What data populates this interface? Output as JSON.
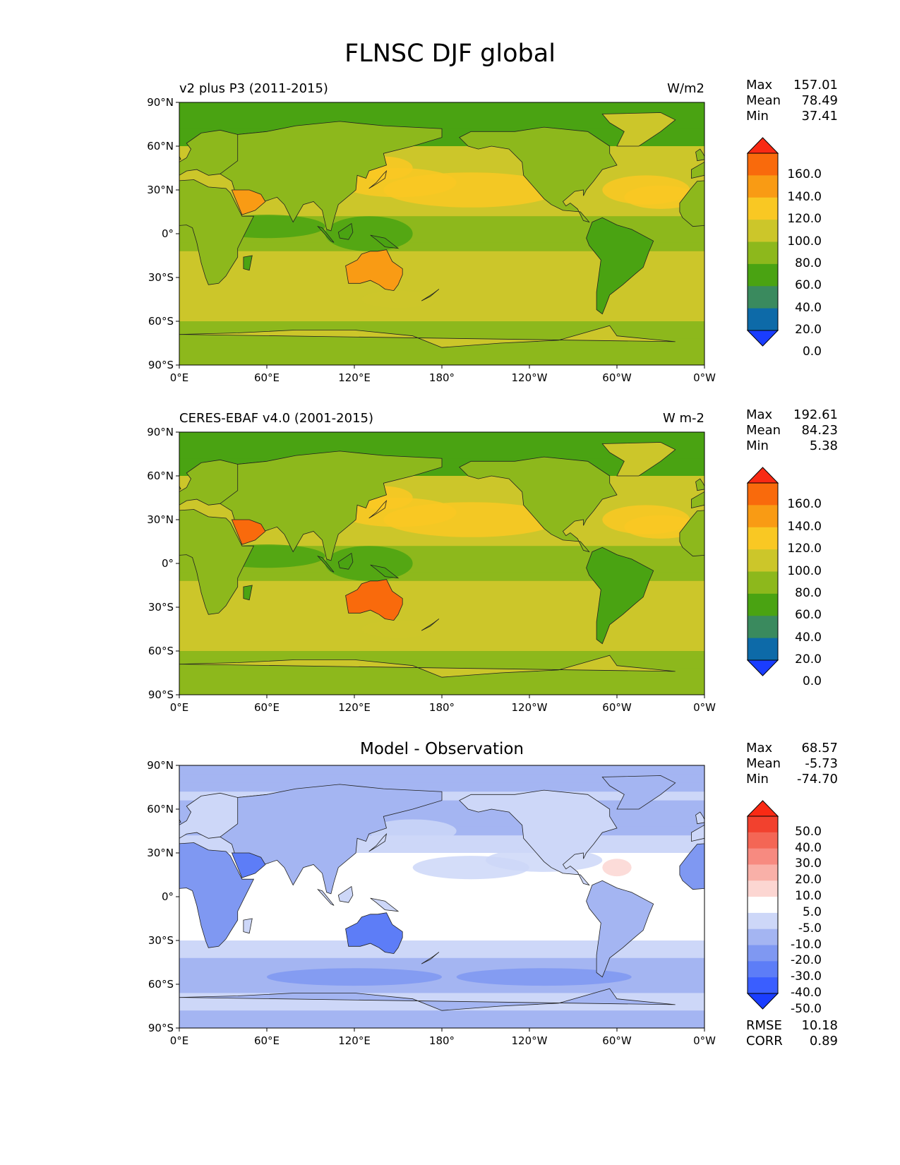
{
  "title": "FLNSC DJF global",
  "lat_ticks": [
    "90°N",
    "60°N",
    "30°N",
    "0°",
    "30°S",
    "60°S",
    "90°S"
  ],
  "lon_ticks": [
    "0°E",
    "60°E",
    "120°E",
    "180°",
    "120°W",
    "60°W",
    "0°W"
  ],
  "colors": {
    "seq": [
      "#1a3dff",
      "#0d6aa8",
      "#3a8a5e",
      "#4aa312",
      "#8db81c",
      "#ccc62a",
      "#f9c823",
      "#f99b14",
      "#f96a0c",
      "#f92a14"
    ],
    "div": [
      "#1a3dff",
      "#3a5eff",
      "#5d7df7",
      "#7f98f2",
      "#a4b5f2",
      "#cdd7f8",
      "#ffffff",
      "#fcd6d2",
      "#f9b0a8",
      "#f78a80",
      "#f46655",
      "#f2412e",
      "#f92a14"
    ]
  },
  "panels": [
    {
      "subtitle_left": "v2 plus P3 (2011-2015)",
      "subtitle_right": "W/m2",
      "title_center": "",
      "stats": [
        {
          "label": "Max",
          "value": "157.01"
        },
        {
          "label": "Mean",
          "value": "78.49"
        },
        {
          "label": "Min",
          "value": "37.41"
        }
      ],
      "colorbar_labels": [
        "160.0",
        "140.0",
        "120.0",
        "100.0",
        "80.0",
        "60.0",
        "40.0",
        "20.0",
        "0.0"
      ],
      "scheme": "seq",
      "extra_stats": []
    },
    {
      "subtitle_left": "CERES-EBAF v4.0 (2001-2015)",
      "subtitle_right": "W m-2",
      "title_center": "",
      "stats": [
        {
          "label": "Max",
          "value": "192.61"
        },
        {
          "label": "Mean",
          "value": "84.23"
        },
        {
          "label": "Min",
          "value": "5.38"
        }
      ],
      "colorbar_labels": [
        "160.0",
        "140.0",
        "120.0",
        "100.0",
        "80.0",
        "60.0",
        "40.0",
        "20.0",
        "0.0"
      ],
      "scheme": "seq",
      "extra_stats": []
    },
    {
      "subtitle_left": "",
      "subtitle_right": "",
      "title_center": "Model - Observation",
      "stats": [
        {
          "label": "Max",
          "value": "68.57"
        },
        {
          "label": "Mean",
          "value": "-5.73"
        },
        {
          "label": "Min",
          "value": "-74.70"
        }
      ],
      "colorbar_labels": [
        "50.0",
        "40.0",
        "30.0",
        "20.0",
        "10.0",
        "5.0",
        "-5.0",
        "-10.0",
        "-20.0",
        "-30.0",
        "-40.0",
        "-50.0"
      ],
      "scheme": "div",
      "extra_stats": [
        {
          "label": "RMSE",
          "value": "10.18"
        },
        {
          "label": "CORR",
          "value": "0.89"
        }
      ]
    }
  ]
}
